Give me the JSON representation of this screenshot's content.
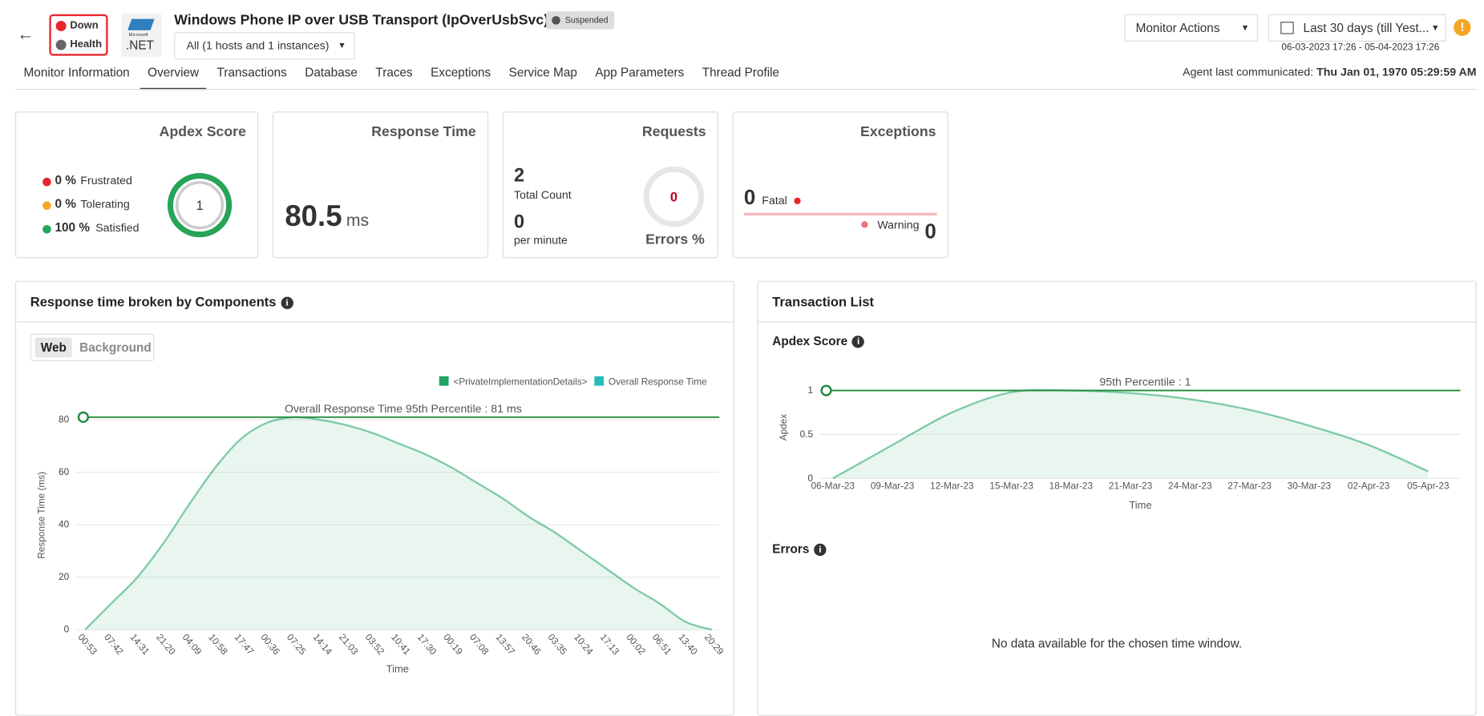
{
  "header": {
    "title": "Windows Phone IP over USB Transport (IpOverUsbSvc)",
    "status": "Suspended",
    "availability": "Down",
    "health": "Health",
    "logo_small": "Microsoft",
    "logo": ".NET",
    "instances": "All (1 hosts and 1 instances)",
    "monitor_actions": "Monitor Actions",
    "time_range": "Last 30 days (till Yest...",
    "time_window": "06-03-2023 17:26 - 05-04-2023 17:26"
  },
  "tabs": [
    "Monitor Information",
    "Overview",
    "Transactions",
    "Database",
    "Traces",
    "Exceptions",
    "Service Map",
    "App Parameters",
    "Thread Profile"
  ],
  "active_tab": 1,
  "agent": {
    "label": "Agent last communicated:",
    "value": "Thu Jan 01, 1970 05:29:59 AM"
  },
  "cards": {
    "apdex": {
      "title": "Apdex Score",
      "score": "1",
      "rows": [
        {
          "value": "0 %",
          "label": "Frustrated",
          "color": "#e8262e"
        },
        {
          "value": "0 %",
          "label": "Tolerating",
          "color": "#f5a623"
        },
        {
          "value": "100 %",
          "label": "Satisfied",
          "color": "#27a35a"
        }
      ]
    },
    "response_time": {
      "title": "Response Time",
      "value": "80.5",
      "unit": "ms"
    },
    "requests": {
      "title": "Requests",
      "total": "2",
      "total_label": "Total Count",
      "rate": "0",
      "rate_label": "per minute",
      "errors": "0",
      "errors_label": "Errors %"
    },
    "exceptions": {
      "title": "Exceptions",
      "fatal": "0",
      "fatal_label": "Fatal",
      "warning_label": "Warning",
      "warning": "0"
    }
  },
  "components_panel": {
    "title": "Response time broken by Components",
    "toggle": [
      "Web",
      "Background"
    ]
  },
  "transactions_panel": {
    "title": "Transaction List",
    "apdex_title": "Apdex Score",
    "errors_title": "Errors",
    "errors_message": "No data available for the chosen time window."
  },
  "chart_data": [
    {
      "type": "area",
      "categories": [
        "00:53",
        "07:42",
        "14:31",
        "21:20",
        "04:09",
        "10:58",
        "17:47",
        "00:36",
        "07:25",
        "14:14",
        "21:03",
        "03:52",
        "10:41",
        "17:30",
        "00:19",
        "07:08",
        "13:57",
        "20:46",
        "03:35",
        "10:24",
        "17:13",
        "00:02",
        "06:51",
        "13:40",
        "20:29"
      ],
      "series": [
        {
          "name": "<PrivateImplementationDetails>",
          "color": "#1fa463",
          "values": [
            0,
            10,
            20,
            33,
            48,
            62,
            73,
            79,
            81,
            80,
            78,
            75,
            71,
            67,
            62,
            56,
            50,
            43,
            37,
            30,
            23,
            16,
            10,
            3,
            0
          ]
        },
        {
          "name": "Overall Response Time",
          "color": "#26bdb9"
        }
      ],
      "ylim": [
        0,
        87
      ],
      "yticks": [
        0,
        20,
        40,
        60,
        80
      ],
      "grid": true,
      "ylabel": "Response Time (ms)",
      "xlabel": "Time",
      "reference_line": {
        "value": 81,
        "label": "Overall Response Time 95th Percentile : 81 ms",
        "color": "#1e8a3a"
      }
    },
    {
      "type": "area",
      "categories": [
        "06-Mar-23",
        "09-Mar-23",
        "12-Mar-23",
        "15-Mar-23",
        "18-Mar-23",
        "21-Mar-23",
        "24-Mar-23",
        "27-Mar-23",
        "30-Mar-23",
        "02-Apr-23",
        "05-Apr-23"
      ],
      "values": [
        0,
        0.38,
        0.75,
        0.98,
        1,
        0.97,
        0.9,
        0.78,
        0.6,
        0.38,
        0.08
      ],
      "color": "#1fa463",
      "ylim": [
        0,
        1.14
      ],
      "yticks": [
        0,
        0.5,
        1
      ],
      "grid": true,
      "ylabel": "Apdex",
      "xlabel": "Time",
      "reference_line": {
        "value": 1,
        "label": "95th Percentile : 1",
        "color": "#1e8a3a"
      }
    }
  ]
}
